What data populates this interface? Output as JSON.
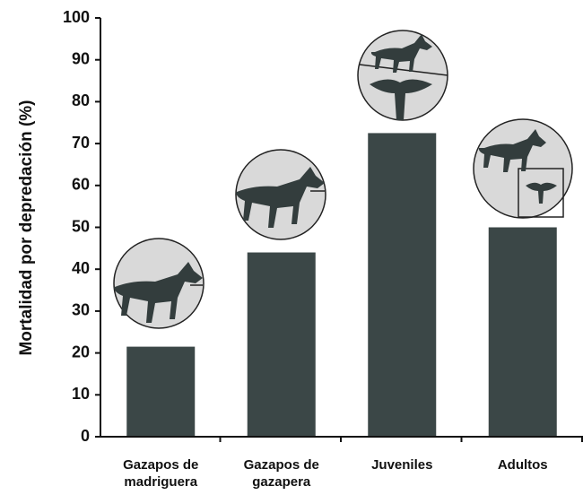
{
  "chart_data": {
    "type": "bar",
    "ylabel": "Mortalidad por depredación (%)",
    "categories": [
      "Gazapos de madriguera",
      "Gazapos de gazapera",
      "Juveniles",
      "Adultos"
    ],
    "values": [
      21.5,
      44,
      72.5,
      50
    ],
    "color": "#3b4747",
    "ylim": [
      0,
      100
    ],
    "yticks": [
      0,
      10,
      20,
      30,
      40,
      50,
      60,
      70,
      80,
      90,
      100
    ]
  }
}
